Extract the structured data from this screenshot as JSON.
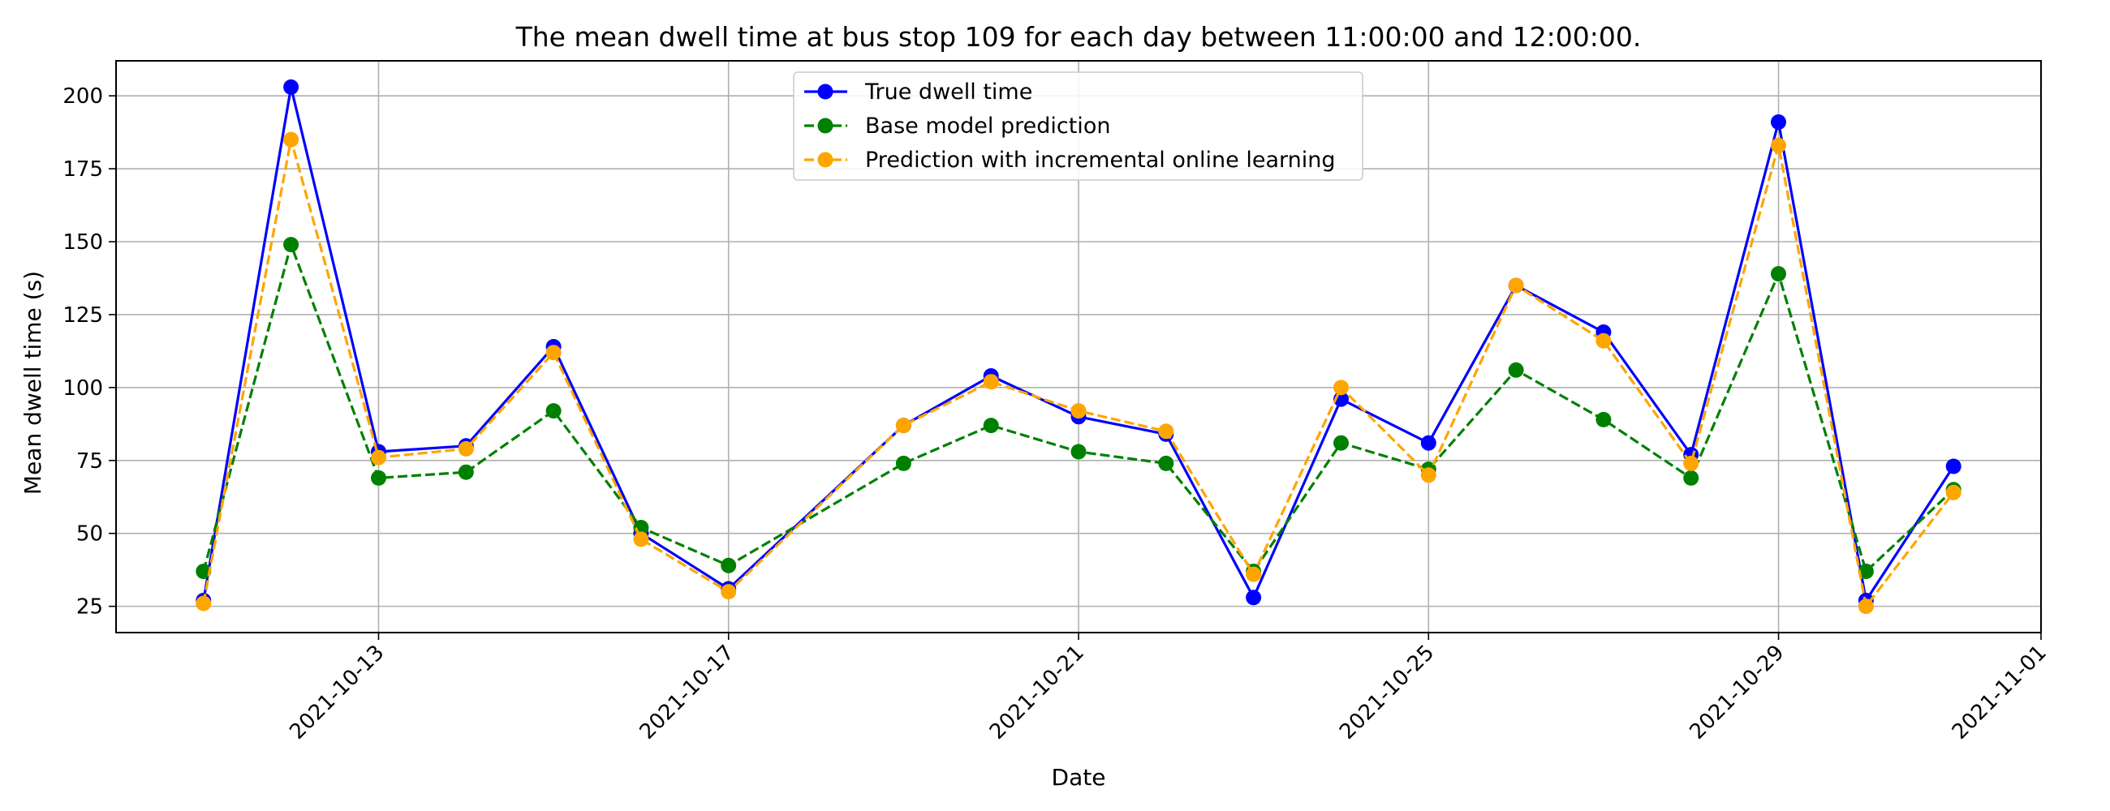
{
  "chart_data": {
    "type": "line",
    "title": "The mean dwell time at bus stop 109 for each day between 11:00:00 and 12:00:00.",
    "xlabel": "Date",
    "ylabel": "Mean dwell time (s)",
    "x": [
      "2021-10-11",
      "2021-10-12",
      "2021-10-13",
      "2021-10-14",
      "2021-10-15",
      "2021-10-16",
      "2021-10-17",
      "2021-10-19",
      "2021-10-20",
      "2021-10-21",
      "2021-10-22",
      "2021-10-23",
      "2021-10-24",
      "2021-10-25",
      "2021-10-26",
      "2021-10-27",
      "2021-10-28",
      "2021-10-29",
      "2021-10-30",
      "2021-10-31"
    ],
    "xlim": [
      "2021-10-10T00:00",
      "2021-11-01"
    ],
    "ylim": [
      16,
      212
    ],
    "x_ticks": [
      "2021-10-13",
      "2021-10-17",
      "2021-10-21",
      "2021-10-25",
      "2021-10-29",
      "2021-11-01"
    ],
    "y_ticks": [
      25,
      50,
      75,
      100,
      125,
      150,
      175,
      200
    ],
    "grid": true,
    "legend_position": "top-center",
    "series": [
      {
        "name": "True dwell time",
        "color": "#0000ff",
        "style": "solid",
        "values": [
          27,
          203,
          78,
          80,
          114,
          50,
          31,
          87,
          104,
          90,
          84,
          28,
          96,
          81,
          135,
          119,
          77,
          191,
          27,
          73
        ]
      },
      {
        "name": "Base model prediction",
        "color": "#008000",
        "style": "dashed",
        "values": [
          37,
          149,
          69,
          71,
          92,
          52,
          39,
          74,
          87,
          78,
          74,
          37,
          81,
          72,
          106,
          89,
          69,
          139,
          37,
          65
        ]
      },
      {
        "name": "Prediction with incremental online learning",
        "color": "#ffa500",
        "style": "dashed",
        "values": [
          26,
          185,
          76,
          79,
          112,
          48,
          30,
          87,
          102,
          92,
          85,
          36,
          100,
          70,
          135,
          116,
          74,
          183,
          25,
          64
        ]
      }
    ]
  }
}
